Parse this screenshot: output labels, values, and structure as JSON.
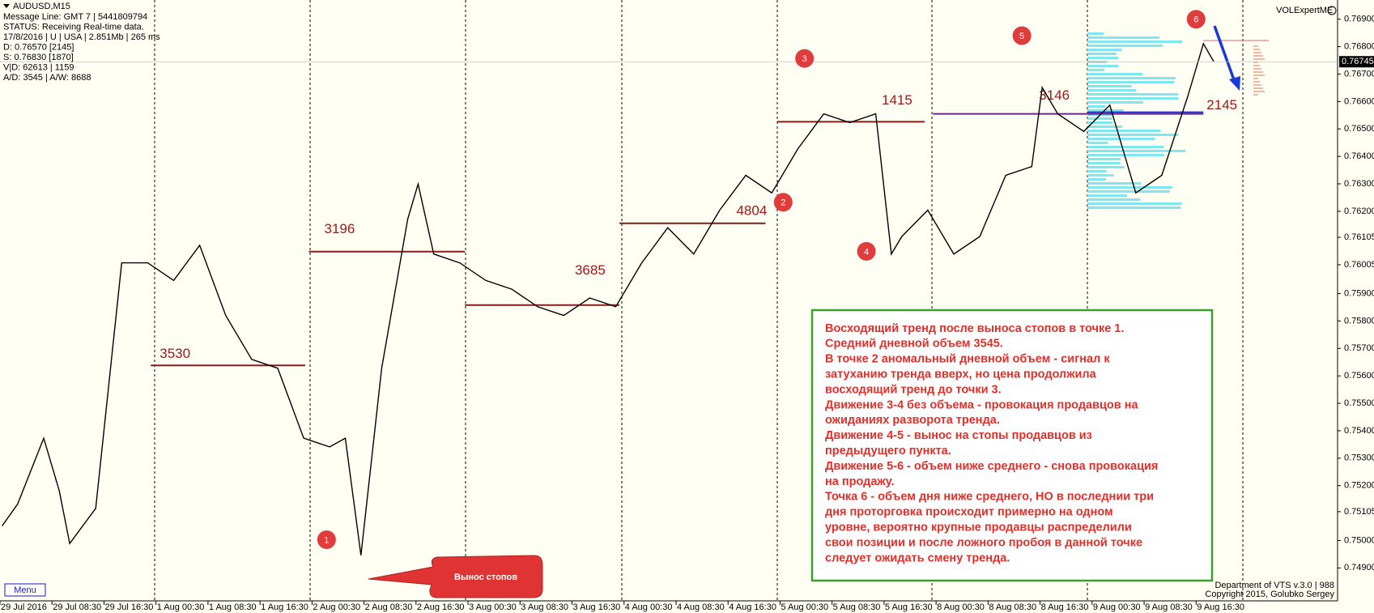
{
  "chart_data": {
    "type": "line",
    "title": "AUDUSD,M15",
    "info_lines": [
      "Message Line: GMT 7 | 5441809794",
      "STATUS:  Receiving Real-time data.",
      "17/8/2016 | U | USA | 2.851Mb | 265 ms",
      "D: 0.76570  [2145]",
      "S: 0.76830  [1870]",
      "V|D: 62613 | 1159",
      "A/D: 3545 | A/W: 8688"
    ],
    "indicator": "VOLExpertME",
    "color": "#000000",
    "x": [
      0.04,
      0.34,
      0.84,
      1.14,
      1.34,
      1.84,
      2.34,
      2.84,
      3.34,
      3.84,
      4.34,
      4.84,
      5.34,
      5.84,
      6.34,
      6.64,
      6.94,
      7.34,
      7.84,
      8.04,
      8.34,
      8.84,
      9.34,
      9.84,
      10.34,
      10.84,
      11.34,
      11.84,
      12.34,
      12.84,
      13.34,
      13.84,
      14.34,
      14.84,
      15.34,
      15.84,
      16.34,
      16.84,
      17.14,
      17.34,
      17.84,
      18.34,
      18.84,
      19.34,
      19.84,
      20.04,
      20.34,
      20.84,
      21.34,
      21.84,
      22.34,
      22.84,
      23.14,
      23.34
    ],
    "values": [
      0.75053,
      0.75133,
      0.75373,
      0.75181,
      0.74989,
      0.75117,
      0.76012,
      0.76012,
      0.75948,
      0.76076,
      0.7582,
      0.7566,
      0.75628,
      0.75373,
      0.75341,
      0.75373,
      0.74946,
      0.75628,
      0.76172,
      0.76299,
      0.76044,
      0.76012,
      0.75948,
      0.75916,
      0.75852,
      0.7582,
      0.75884,
      0.75852,
      0.76012,
      0.7614,
      0.76044,
      0.76204,
      0.76331,
      0.76267,
      0.76427,
      0.76555,
      0.76523,
      0.76555,
      0.76044,
      0.76108,
      0.76204,
      0.76044,
      0.76108,
      0.76331,
      0.76363,
      0.76651,
      0.76555,
      0.76491,
      0.76587,
      0.76267,
      0.76331,
      0.76619,
      0.76811,
      0.76745
    ],
    "xlim": [
      0,
      25.72
    ],
    "ylim": [
      0.7478,
      0.7697
    ],
    "xticks": [
      {
        "value": 0,
        "label": "29 Jul 2016"
      },
      {
        "value": 1,
        "label": "29 Jul 08:30"
      },
      {
        "value": 2,
        "label": "29 Jul 16:30"
      },
      {
        "value": 3,
        "label": "1 Aug 00:30"
      },
      {
        "value": 4,
        "label": "1 Aug 08:30"
      },
      {
        "value": 5,
        "label": "1 Aug 16:30"
      },
      {
        "value": 6,
        "label": "2 Aug 00:30"
      },
      {
        "value": 7,
        "label": "2 Aug 08:30"
      },
      {
        "value": 8,
        "label": "2 Aug 16:30"
      },
      {
        "value": 9,
        "label": "3 Aug 00:30"
      },
      {
        "value": 10,
        "label": "3 Aug 08:30"
      },
      {
        "value": 11,
        "label": "3 Aug 16:30"
      },
      {
        "value": 12,
        "label": "4 Aug 00:30"
      },
      {
        "value": 13,
        "label": "4 Aug 08:30"
      },
      {
        "value": 14,
        "label": "4 Aug 16:30"
      },
      {
        "value": 15,
        "label": "5 Aug 00:30"
      },
      {
        "value": 16,
        "label": "5 Aug 08:30"
      },
      {
        "value": 17,
        "label": "5 Aug 16:30"
      },
      {
        "value": 18,
        "label": "8 Aug 00:30"
      },
      {
        "value": 19,
        "label": "8 Aug 08:30"
      },
      {
        "value": 20,
        "label": "8 Aug 16:30"
      },
      {
        "value": 21,
        "label": "9 Aug 00:30"
      },
      {
        "value": 22,
        "label": "9 Aug 08:30"
      },
      {
        "value": 23,
        "label": "9 Aug 16:30"
      }
    ],
    "yticks": [
      {
        "value": 0.769,
        "label": "0.76900"
      },
      {
        "value": 0.768,
        "label": "0.76800"
      },
      {
        "value": 0.767,
        "label": "0.76700"
      },
      {
        "value": 0.766,
        "label": "0.76600"
      },
      {
        "value": 0.765,
        "label": "0.76500"
      },
      {
        "value": 0.764,
        "label": "0.76400"
      },
      {
        "value": 0.763,
        "label": "0.76300"
      },
      {
        "value": 0.762,
        "label": "0.76200"
      },
      0.76105,
      0.76005,
      {
        "value": 0.759,
        "label": "0.75900"
      },
      {
        "value": 0.758,
        "label": "0.75800"
      },
      {
        "value": 0.757,
        "label": "0.75700"
      },
      {
        "value": 0.756,
        "label": "0.75600"
      },
      {
        "value": 0.755,
        "label": "0.75500"
      },
      {
        "value": 0.754,
        "label": "0.75400"
      },
      {
        "value": 0.753,
        "label": "0.75300"
      },
      {
        "value": 0.752,
        "label": "0.75200"
      },
      0.75105,
      {
        "value": 0.75,
        "label": "0.75000"
      },
      {
        "value": 0.749,
        "label": "0.74900"
      }
    ],
    "current_price": 0.76745,
    "levels": [
      {
        "volume": 3530,
        "price": 0.75638,
        "start": 2.9,
        "end": 5.87,
        "color": "#8b1a1a"
      },
      {
        "volume": 3196,
        "price": 0.76053,
        "start": 5.94,
        "end": 8.94,
        "color": "#8b1a1a"
      },
      {
        "volume": 3685,
        "price": 0.75858,
        "start": 8.94,
        "end": 11.91,
        "color": "#8b1a1a"
      },
      {
        "volume": 4804,
        "price": 0.76156,
        "start": 11.91,
        "end": 14.72,
        "color": "#8b1a1a"
      },
      {
        "volume": 1415,
        "price": 0.76526,
        "start": 14.94,
        "end": 17.78,
        "color": "#8b1a1a"
      },
      {
        "volume": 3146,
        "price": 0.76555,
        "start": 17.94,
        "end": 23.14,
        "color": "#6a2a8a"
      },
      {
        "volume": 2145,
        "price": 0.76561,
        "start": 20.91,
        "end": 23.14,
        "color": "#2233cc"
      }
    ],
    "markers": [
      {
        "label": "1",
        "x": 6.28,
        "price": 0.75003
      },
      {
        "label": "2",
        "x": 15.06,
        "price": 0.76233
      },
      {
        "label": "3",
        "x": 15.47,
        "price": 0.76757
      },
      {
        "label": "4",
        "x": 16.66,
        "price": 0.76054
      },
      {
        "label": "5",
        "x": 19.65,
        "price": 0.7684
      },
      {
        "label": "6",
        "x": 23.0,
        "price": 0.769
      }
    ],
    "note": [
      "Восходящий тренд после выноса стопов в точке 1.",
      "Средний дневной объем 3545.",
      "В точке 2 аномальный дневной объем - сигнал к",
      "затуханию тренда вверх, но цена продолжила",
      "восходящий тренд до точки 3.",
      "Движение 3-4 без объема - провокация продавцов на",
      "ожиданиях разворота тренда.",
      "Движение 4-5 - вынос на стопы продавцов из",
      "предыдущего пункта.",
      "Движение 5-6 - объем ниже среднего - снова провокация",
      "на продажу.",
      "Точка 6 - объем дня ниже среднего, НО в последнии три",
      "дня проторговка происходит примерно на одном",
      "уровне, вероятно крупные продавцы распределили",
      "свои позиции и после ложного пробоя в данной точке",
      "следует ожидать смену тренда."
    ],
    "callout": "Вынос стопов",
    "menu": "Menu",
    "footer": [
      "Department of VTS  v.3.0 | 988",
      "Copyright 2015, Golubko Sergey"
    ]
  }
}
